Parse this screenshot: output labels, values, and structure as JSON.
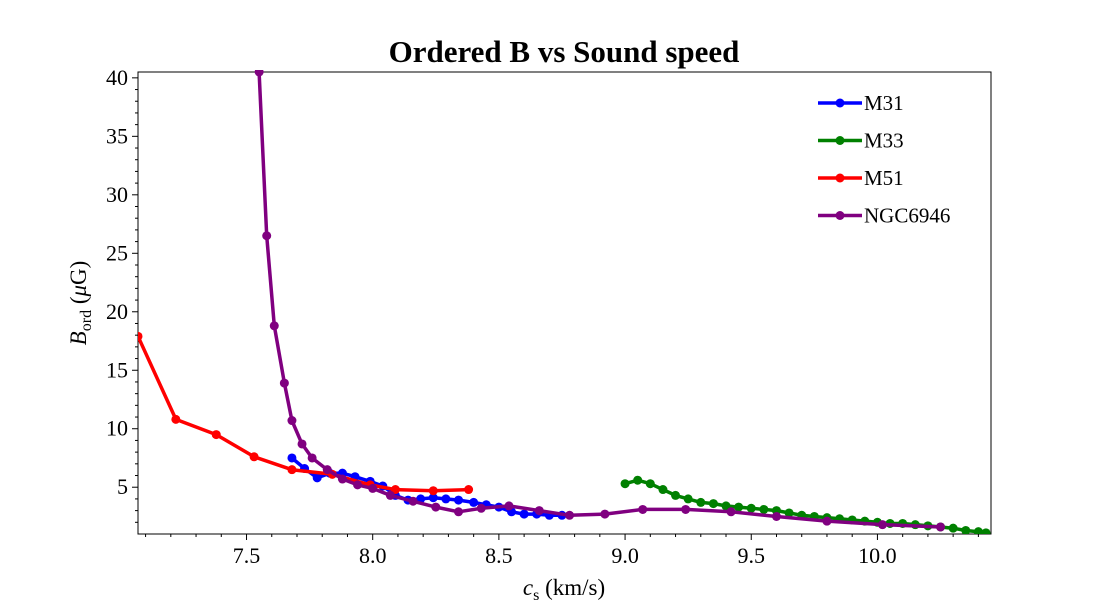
{
  "chart_data": {
    "type": "line",
    "title": "Ordered B vs Sound speed",
    "xlabel": {
      "symbol": "c",
      "subscript": "s",
      "unit": " (km/s)"
    },
    "ylabel": {
      "symbol": "B",
      "subscript": "ord",
      "unit_prefix": " (",
      "unit_mu": "μ",
      "unit_rest": "G)"
    },
    "xlim": [
      7.07,
      10.45
    ],
    "ylim": [
      1.0,
      40.5
    ],
    "xticks": [
      7.5,
      8.0,
      8.5,
      9.0,
      9.5,
      10.0
    ],
    "xtick_labels": [
      "7.5",
      "8.0",
      "8.5",
      "9.0",
      "9.5",
      "10.0"
    ],
    "yticks": [
      5,
      10,
      15,
      20,
      25,
      30,
      35,
      40
    ],
    "ytick_labels": [
      "5",
      "10",
      "15",
      "20",
      "25",
      "30",
      "35",
      "40"
    ],
    "grid": false,
    "legend_position": "top-right",
    "series": [
      {
        "name": "M31",
        "color": "#0000ff",
        "x": [
          7.68,
          7.73,
          7.78,
          7.83,
          7.88,
          7.93,
          7.99,
          8.04,
          8.09,
          8.14,
          8.19,
          8.24,
          8.29,
          8.34,
          8.4,
          8.45,
          8.5,
          8.55,
          8.6,
          8.65,
          8.7,
          8.75
        ],
        "y": [
          7.5,
          6.6,
          5.8,
          6.2,
          6.2,
          5.9,
          5.5,
          5.1,
          4.3,
          3.9,
          4.0,
          4.1,
          4.0,
          3.9,
          3.7,
          3.5,
          3.3,
          2.9,
          2.7,
          2.7,
          2.6,
          2.6
        ]
      },
      {
        "name": "M33",
        "color": "#008000",
        "x": [
          9.0,
          9.05,
          9.1,
          9.15,
          9.2,
          9.25,
          9.3,
          9.35,
          9.4,
          9.45,
          9.5,
          9.55,
          9.6,
          9.65,
          9.7,
          9.75,
          9.8,
          9.85,
          9.9,
          9.95,
          10.0,
          10.05,
          10.1,
          10.15,
          10.2,
          10.25,
          10.3,
          10.35,
          10.4,
          10.43
        ],
        "y": [
          5.3,
          5.6,
          5.3,
          4.8,
          4.3,
          4.0,
          3.7,
          3.6,
          3.4,
          3.3,
          3.2,
          3.1,
          3.0,
          2.8,
          2.6,
          2.5,
          2.4,
          2.3,
          2.2,
          2.1,
          2.0,
          1.9,
          1.9,
          1.8,
          1.7,
          1.6,
          1.5,
          1.3,
          1.2,
          1.1
        ]
      },
      {
        "name": "M51",
        "color": "#ff0000",
        "x": [
          7.07,
          7.22,
          7.38,
          7.53,
          7.68,
          7.84,
          7.99,
          8.09,
          8.24,
          8.38
        ],
        "y": [
          17.9,
          10.8,
          9.5,
          7.6,
          6.5,
          6.1,
          5.2,
          4.8,
          4.7,
          4.8
        ]
      },
      {
        "name": "NGC6946",
        "color": "#800080",
        "x": [
          7.55,
          7.58,
          7.61,
          7.65,
          7.68,
          7.72,
          7.76,
          7.82,
          7.88,
          7.94,
          8.0,
          8.07,
          8.16,
          8.25,
          8.34,
          8.43,
          8.54,
          8.66,
          8.78,
          8.92,
          9.07,
          9.24,
          9.42,
          9.6,
          9.8,
          10.02,
          10.25
        ],
        "y": [
          40.5,
          26.5,
          18.8,
          13.9,
          10.7,
          8.7,
          7.5,
          6.5,
          5.7,
          5.2,
          4.9,
          4.3,
          3.8,
          3.3,
          2.9,
          3.2,
          3.4,
          3.0,
          2.6,
          2.7,
          3.1,
          3.1,
          2.9,
          2.5,
          2.1,
          1.8,
          1.6
        ]
      }
    ]
  }
}
